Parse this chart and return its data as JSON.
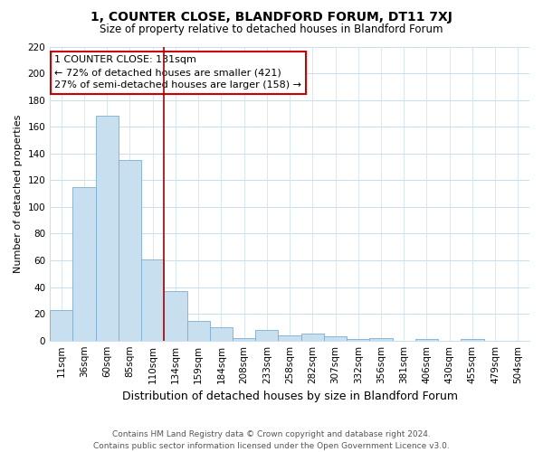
{
  "title": "1, COUNTER CLOSE, BLANDFORD FORUM, DT11 7XJ",
  "subtitle": "Size of property relative to detached houses in Blandford Forum",
  "xlabel": "Distribution of detached houses by size in Blandford Forum",
  "ylabel": "Number of detached properties",
  "bar_labels": [
    "11sqm",
    "36sqm",
    "60sqm",
    "85sqm",
    "110sqm",
    "134sqm",
    "159sqm",
    "184sqm",
    "208sqm",
    "233sqm",
    "258sqm",
    "282sqm",
    "307sqm",
    "332sqm",
    "356sqm",
    "381sqm",
    "406sqm",
    "430sqm",
    "455sqm",
    "479sqm",
    "504sqm"
  ],
  "bar_values": [
    23,
    115,
    168,
    135,
    61,
    37,
    15,
    10,
    2,
    8,
    4,
    5,
    3,
    1,
    2,
    0,
    1,
    0,
    1,
    0,
    0
  ],
  "bar_color": "#c8dff0",
  "bar_edge_color": "#7badd0",
  "vline_x_index": 4.5,
  "vline_color": "#aa0000",
  "annotation_text": "1 COUNTER CLOSE: 131sqm\n← 72% of detached houses are smaller (421)\n27% of semi-detached houses are larger (158) →",
  "annotation_box_color": "#ffffff",
  "annotation_box_edge_color": "#cc0000",
  "ylim": [
    0,
    220
  ],
  "yticks": [
    0,
    20,
    40,
    60,
    80,
    100,
    120,
    140,
    160,
    180,
    200,
    220
  ],
  "footer_line1": "Contains HM Land Registry data © Crown copyright and database right 2024.",
  "footer_line2": "Contains public sector information licensed under the Open Government Licence v3.0.",
  "bg_color": "#ffffff",
  "grid_color": "#c8dff0",
  "title_fontsize": 10,
  "subtitle_fontsize": 8.5,
  "xlabel_fontsize": 9,
  "ylabel_fontsize": 8,
  "tick_fontsize": 7.5,
  "footer_fontsize": 6.5,
  "annot_fontsize": 8
}
